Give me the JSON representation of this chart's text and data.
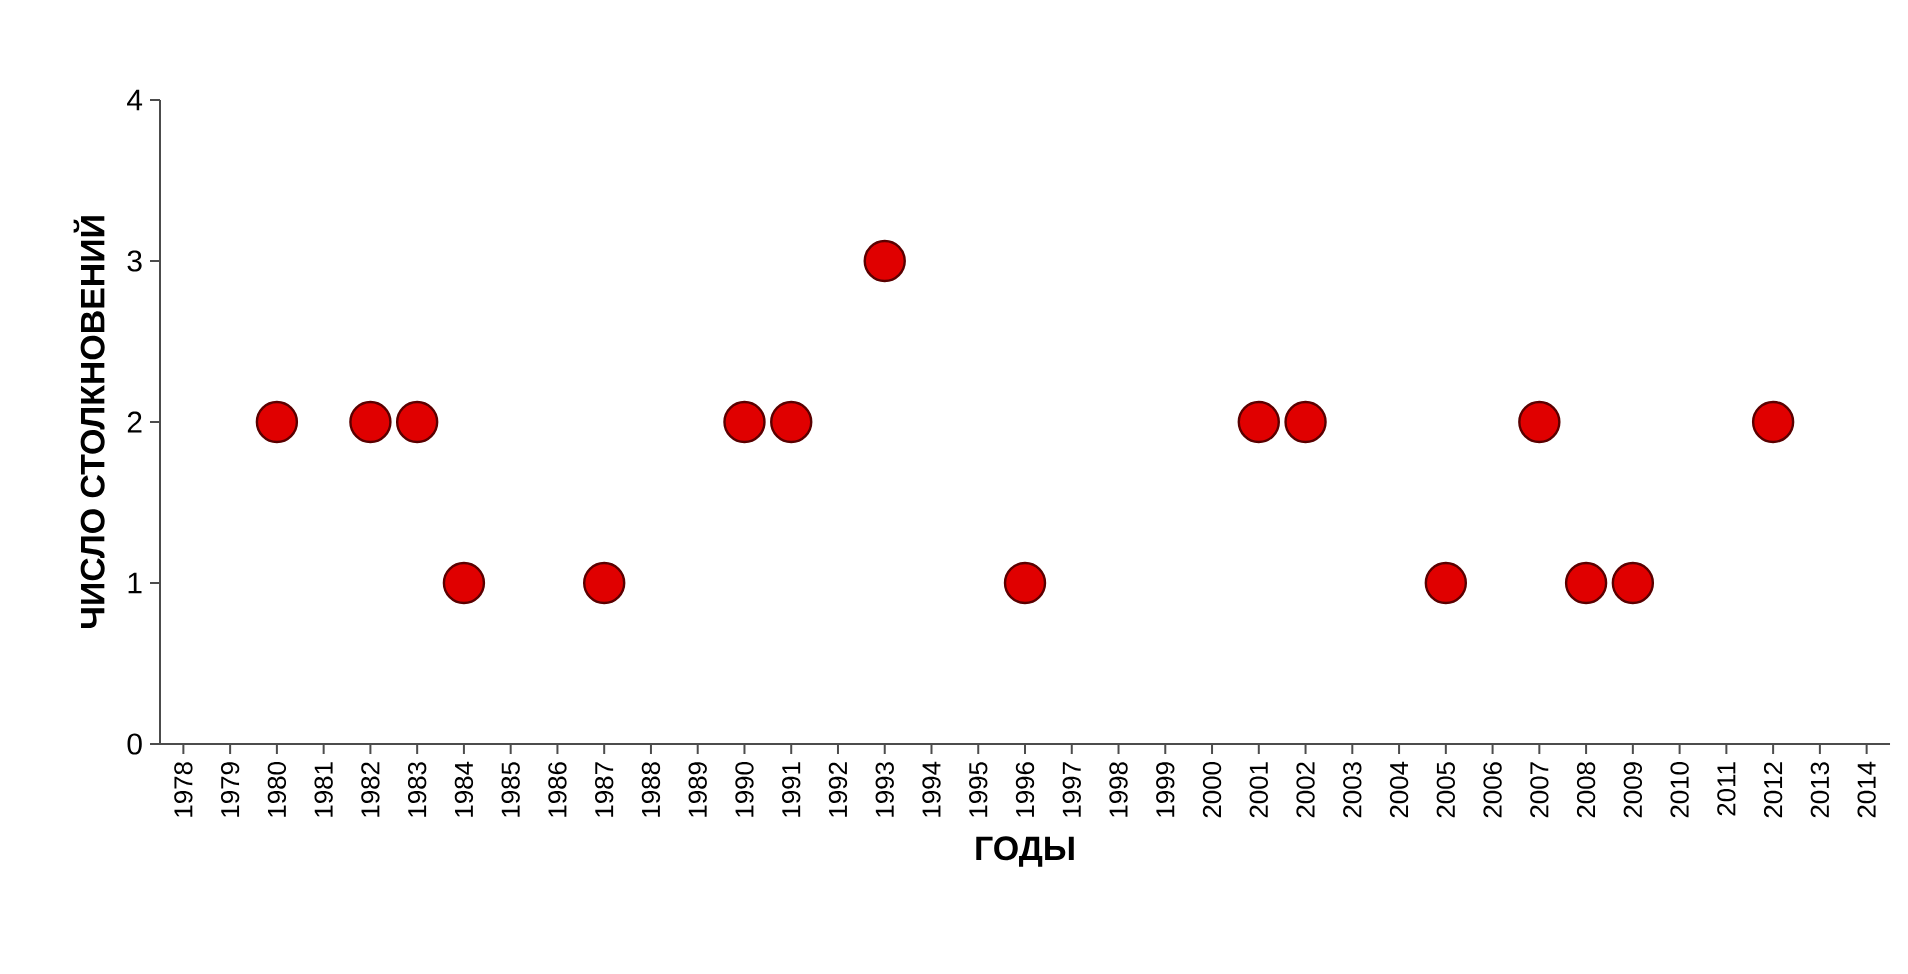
{
  "chart_data": {
    "type": "scatter",
    "xlabel": "ГОДЫ",
    "ylabel": "ЧИСЛО СТОЛКНОВЕНИЙ",
    "x": [
      1980,
      1982,
      1983,
      1984,
      1987,
      1990,
      1991,
      1993,
      1996,
      2001,
      2002,
      2005,
      2007,
      2008,
      2009,
      2012
    ],
    "values": [
      2,
      2,
      2,
      1,
      1,
      2,
      2,
      3,
      1,
      2,
      2,
      1,
      2,
      1,
      1,
      2
    ],
    "color": "#e00000",
    "marker": "circle",
    "grid": false,
    "xlim": [
      1977.5,
      2014.5
    ],
    "xticks": [
      1978,
      1979,
      1980,
      1981,
      1982,
      1983,
      1984,
      1985,
      1986,
      1987,
      1988,
      1989,
      1990,
      1991,
      1992,
      1993,
      1994,
      1995,
      1996,
      1997,
      1998,
      1999,
      2000,
      2001,
      2002,
      2003,
      2004,
      2005,
      2006,
      2007,
      2008,
      2009,
      2010,
      2011,
      2012,
      2013,
      2014
    ],
    "ylim": [
      0,
      4
    ],
    "yticks": [
      0,
      1,
      2,
      3,
      4
    ]
  }
}
